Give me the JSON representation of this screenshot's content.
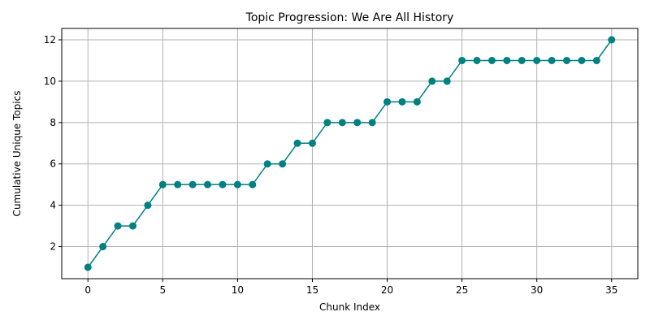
{
  "chart_data": {
    "type": "line",
    "title": "Topic Progression: We Are All History",
    "xlabel": "Chunk Index",
    "ylabel": "Cumulative Unique Topics",
    "x": [
      0,
      1,
      2,
      3,
      4,
      5,
      6,
      7,
      8,
      9,
      10,
      11,
      12,
      13,
      14,
      15,
      16,
      17,
      18,
      19,
      20,
      21,
      22,
      23,
      24,
      25,
      26,
      27,
      28,
      29,
      30,
      31,
      32,
      33,
      34,
      35
    ],
    "series": [
      {
        "values": [
          1,
          2,
          3,
          3,
          4,
          5,
          5,
          5,
          5,
          5,
          5,
          5,
          6,
          6,
          7,
          7,
          8,
          8,
          8,
          8,
          9,
          9,
          9,
          10,
          10,
          11,
          11,
          11,
          11,
          11,
          11,
          11,
          11,
          11,
          11,
          12
        ],
        "color": "#008080",
        "marker": "circle"
      }
    ],
    "xlim": [
      -1.75,
      36.75
    ],
    "ylim": [
      0.45,
      12.55
    ],
    "xticks": [
      0,
      5,
      10,
      15,
      20,
      25,
      30,
      35
    ],
    "yticks": [
      2,
      4,
      6,
      8,
      10,
      12
    ],
    "grid": true,
    "legend": "none"
  }
}
